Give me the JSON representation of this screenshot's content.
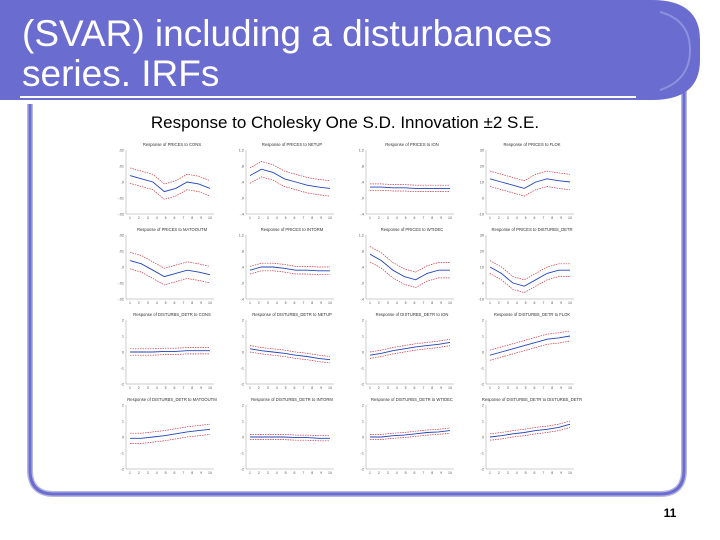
{
  "slide": {
    "title_line1": "(SVAR) including a disturbances",
    "title_line2": "series. IRFs",
    "caption": "Response to Cholesky One S.D. Innovation ±2 S.E.",
    "page_number": "11",
    "colors": {
      "frame": "#6a6ccf",
      "frame_shadow": "#a9a9d9",
      "background": "#ffffff",
      "response": "#2244bb",
      "bands": "#cc3344"
    }
  },
  "panels": [
    {
      "title": "Response of PRICES to CONS",
      "yticks": [
        ".02",
        ".01",
        ".0",
        "-.01",
        "-.02"
      ],
      "y": [
        0.6,
        0.55,
        0.5,
        0.35,
        0.4,
        0.5,
        0.47,
        0.4
      ],
      "band": 0.12
    },
    {
      "title": "Response of PRICES to NETUP",
      "yticks": [
        "1.2",
        ".8",
        ".4",
        ".0",
        "-.4"
      ],
      "y": [
        0.6,
        0.7,
        0.65,
        0.55,
        0.5,
        0.45,
        0.42,
        0.4
      ],
      "band": 0.12
    },
    {
      "title": "Response of PRICES to ION",
      "yticks": [
        "1.2",
        ".8",
        ".4",
        ".0",
        "-.4"
      ],
      "y": [
        0.42,
        0.42,
        0.41,
        0.41,
        0.4,
        0.4,
        0.4,
        0.4
      ],
      "band": 0.05
    },
    {
      "title": "Response of PRICES to FLOK",
      "yticks": [
        "30",
        "20",
        "10",
        "0",
        "-10"
      ],
      "y": [
        0.55,
        0.5,
        0.45,
        0.4,
        0.5,
        0.55,
        0.52,
        0.5
      ],
      "band": 0.12
    },
    {
      "title": "Response of PRICES to MATOOUTM",
      "yticks": [
        ".02",
        ".01",
        ".0",
        "-.01",
        "-.02"
      ],
      "y": [
        0.6,
        0.55,
        0.45,
        0.35,
        0.4,
        0.45,
        0.42,
        0.38
      ],
      "band": 0.13
    },
    {
      "title": "Response of PRICES to INTORM",
      "yticks": [
        "1.2",
        ".8",
        ".4",
        ".0",
        "-.4"
      ],
      "y": [
        0.45,
        0.5,
        0.5,
        0.48,
        0.45,
        0.45,
        0.44,
        0.44
      ],
      "band": 0.06
    },
    {
      "title": "Response of PRICES to WTIDEC",
      "yticks": [
        "1.2",
        ".8",
        ".4",
        ".0",
        "-.4"
      ],
      "y": [
        0.7,
        0.6,
        0.45,
        0.35,
        0.3,
        0.4,
        0.45,
        0.45
      ],
      "band": 0.12
    },
    {
      "title": "Response of PRICES to DISTURBS_DETR",
      "yticks": [
        "30",
        "20",
        "10",
        "0",
        "-10"
      ],
      "y": [
        0.5,
        0.4,
        0.25,
        0.2,
        0.3,
        0.4,
        0.45,
        0.45
      ],
      "band": 0.1
    },
    {
      "title": "Response of DISTURBS_DETR to CONS",
      "yticks": [
        "2",
        "1",
        "0",
        "-1",
        "-2"
      ],
      "y": [
        0.5,
        0.5,
        0.5,
        0.51,
        0.51,
        0.52,
        0.52,
        0.52
      ],
      "band": 0.05
    },
    {
      "title": "Response of DISTURBS_DETR to NETUP",
      "yticks": [
        "2",
        "1",
        "0",
        "-1",
        "-2"
      ],
      "y": [
        0.55,
        0.52,
        0.5,
        0.48,
        0.45,
        0.43,
        0.4,
        0.38
      ],
      "band": 0.05
    },
    {
      "title": "Response of DISTURBS_DETR to ION",
      "yticks": [
        "2",
        "1",
        "0",
        "-1",
        "-2"
      ],
      "y": [
        0.45,
        0.48,
        0.52,
        0.55,
        0.58,
        0.6,
        0.62,
        0.65
      ],
      "band": 0.05
    },
    {
      "title": "Response of DISTURBS_DETR to FLOK",
      "yticks": [
        "2",
        "1",
        "0",
        "-1",
        "-2"
      ],
      "y": [
        0.45,
        0.5,
        0.55,
        0.6,
        0.65,
        0.7,
        0.72,
        0.75
      ],
      "band": 0.08
    },
    {
      "title": "Response of DISTURBS_DETR to MATOOUTM",
      "yticks": [
        "2",
        "1",
        "0",
        "-1",
        "-2"
      ],
      "y": [
        0.48,
        0.48,
        0.5,
        0.52,
        0.55,
        0.58,
        0.6,
        0.62
      ],
      "band": 0.08
    },
    {
      "title": "Response of DISTURBS_DETR to INTORM",
      "yticks": [
        "2",
        "1",
        "0",
        "-1",
        "-2"
      ],
      "y": [
        0.5,
        0.5,
        0.5,
        0.5,
        0.49,
        0.49,
        0.48,
        0.48
      ],
      "band": 0.04
    },
    {
      "title": "Response of DISTURBS_DETR to WTIDEC",
      "yticks": [
        "2",
        "1",
        "0",
        "-1",
        "-2"
      ],
      "y": [
        0.5,
        0.5,
        0.52,
        0.53,
        0.55,
        0.57,
        0.58,
        0.6
      ],
      "band": 0.04
    },
    {
      "title": "Response of DISTURBS_DETR to DISTURBS_DETR",
      "yticks": [
        "2",
        "1",
        "0",
        "-1",
        "-2"
      ],
      "y": [
        0.5,
        0.52,
        0.55,
        0.57,
        0.6,
        0.62,
        0.65,
        0.7
      ],
      "band": 0.05
    }
  ],
  "xticks": [
    "1",
    "2",
    "3",
    "4",
    "5",
    "6",
    "7",
    "8",
    "9",
    "10"
  ]
}
